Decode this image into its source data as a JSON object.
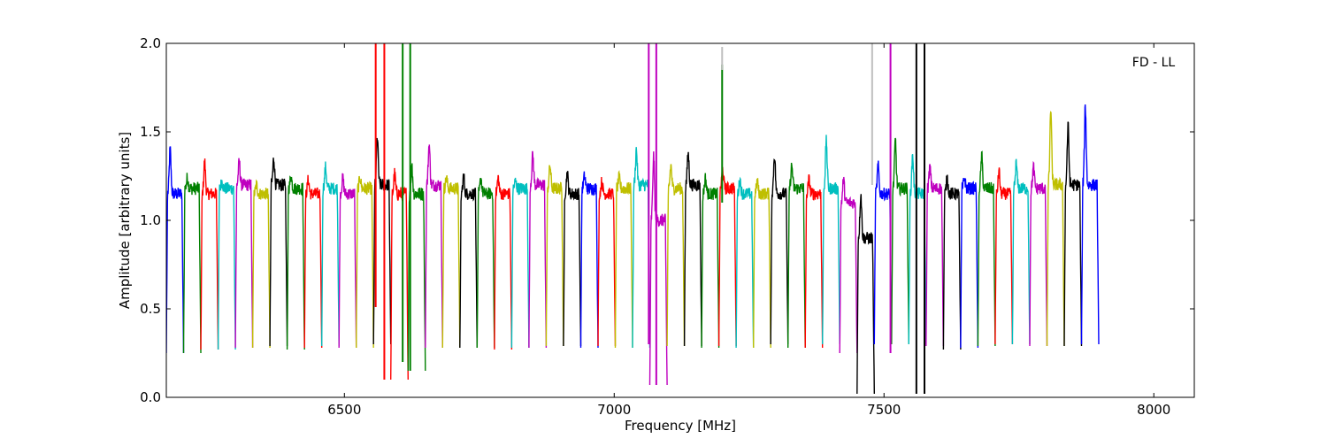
{
  "chart_data": {
    "type": "line",
    "title": "",
    "annotation": "FD - LL",
    "xlabel": "Frequency [MHz]",
    "ylabel": "Amplitude [arbitrary units]",
    "xlim": [
      6170,
      8075
    ],
    "ylim": [
      0.0,
      2.0
    ],
    "xticks": [
      6500,
      7000,
      7500,
      8000
    ],
    "xtick_labels": [
      "6500",
      "7000",
      "7500",
      "8000"
    ],
    "yticks": [
      0.0,
      0.5,
      1.0,
      1.5,
      2.0
    ],
    "ytick_labels": [
      "0.0",
      "0.5",
      "1.0",
      "1.5",
      "2.0"
    ],
    "grid": false,
    "legend": "none",
    "color_cycle": [
      "#0000ff",
      "#008000",
      "#ff0000",
      "#00bfbf",
      "#bf00bf",
      "#bfbf00",
      "#000000"
    ],
    "channel_width_mhz": 32,
    "channels": [
      {
        "x_start": 6170,
        "x_end": 6202,
        "color": "#0000ff",
        "peak": 1.4,
        "level": 1.15,
        "low": 0.25
      },
      {
        "x_start": 6202,
        "x_end": 6234,
        "color": "#008000",
        "peak": 1.24,
        "level": 1.18,
        "low": 0.25
      },
      {
        "x_start": 6234,
        "x_end": 6266,
        "color": "#ff0000",
        "peak": 1.33,
        "level": 1.15,
        "low": 0.27
      },
      {
        "x_start": 6266,
        "x_end": 6298,
        "color": "#00bfbf",
        "peak": 1.22,
        "level": 1.18,
        "low": 0.27
      },
      {
        "x_start": 6298,
        "x_end": 6330,
        "color": "#bf00bf",
        "peak": 1.33,
        "level": 1.2,
        "low": 0.28
      },
      {
        "x_start": 6330,
        "x_end": 6362,
        "color": "#bfbf00",
        "peak": 1.2,
        "level": 1.15,
        "low": 0.28
      },
      {
        "x_start": 6362,
        "x_end": 6394,
        "color": "#000000",
        "peak": 1.35,
        "level": 1.2,
        "low": 0.29
      },
      {
        "x_start": 6394,
        "x_end": 6426,
        "color": "#008000",
        "peak": 1.25,
        "level": 1.18,
        "low": 0.27
      },
      {
        "x_start": 6426,
        "x_end": 6458,
        "color": "#ff0000",
        "peak": 1.23,
        "level": 1.15,
        "low": 0.28
      },
      {
        "x_start": 6458,
        "x_end": 6490,
        "color": "#00bfbf",
        "peak": 1.3,
        "level": 1.18,
        "low": 0.29
      },
      {
        "x_start": 6490,
        "x_end": 6522,
        "color": "#bf00bf",
        "peak": 1.24,
        "level": 1.15,
        "low": 0.28
      },
      {
        "x_start": 6522,
        "x_end": 6554,
        "color": "#bfbf00",
        "peak": 1.24,
        "level": 1.18,
        "low": 0.28
      },
      {
        "x_start": 6554,
        "x_end": 6586,
        "color": "#000000",
        "peak": 1.47,
        "level": 1.2,
        "low": 0.3
      },
      {
        "x_start": 6586,
        "x_end": 6618,
        "color": "#ff0000",
        "peak": 1.26,
        "level": 1.15,
        "low": 0.1
      },
      {
        "x_start": 6618,
        "x_end": 6650,
        "color": "#008000",
        "peak": 1.3,
        "level": 1.15,
        "low": 0.15
      },
      {
        "x_start": 6650,
        "x_end": 6682,
        "color": "#bf00bf",
        "peak": 1.43,
        "level": 1.2,
        "low": 0.28
      },
      {
        "x_start": 6682,
        "x_end": 6714,
        "color": "#bfbf00",
        "peak": 1.24,
        "level": 1.18,
        "low": 0.28
      },
      {
        "x_start": 6714,
        "x_end": 6746,
        "color": "#000000",
        "peak": 1.25,
        "level": 1.15,
        "low": 0.28
      },
      {
        "x_start": 6746,
        "x_end": 6778,
        "color": "#008000",
        "peak": 1.24,
        "level": 1.15,
        "low": 0.28
      },
      {
        "x_start": 6778,
        "x_end": 6810,
        "color": "#ff0000",
        "peak": 1.24,
        "level": 1.15,
        "low": 0.27
      },
      {
        "x_start": 6810,
        "x_end": 6842,
        "color": "#00bfbf",
        "peak": 1.22,
        "level": 1.18,
        "low": 0.28
      },
      {
        "x_start": 6842,
        "x_end": 6874,
        "color": "#bf00bf",
        "peak": 1.37,
        "level": 1.2,
        "low": 0.28
      },
      {
        "x_start": 6874,
        "x_end": 6906,
        "color": "#bfbf00",
        "peak": 1.31,
        "level": 1.18,
        "low": 0.29
      },
      {
        "x_start": 6906,
        "x_end": 6938,
        "color": "#000000",
        "peak": 1.27,
        "level": 1.15,
        "low": 0.29
      },
      {
        "x_start": 6938,
        "x_end": 6970,
        "color": "#0000ff",
        "peak": 1.25,
        "level": 1.18,
        "low": 0.28
      },
      {
        "x_start": 6970,
        "x_end": 7002,
        "color": "#ff0000",
        "peak": 1.22,
        "level": 1.15,
        "low": 0.29
      },
      {
        "x_start": 7002,
        "x_end": 7034,
        "color": "#bfbf00",
        "peak": 1.24,
        "level": 1.18,
        "low": 0.28
      },
      {
        "x_start": 7034,
        "x_end": 7066,
        "color": "#00bfbf",
        "peak": 1.4,
        "level": 1.2,
        "low": 0.28
      },
      {
        "x_start": 7066,
        "x_end": 7098,
        "color": "#bf00bf",
        "peak": 1.36,
        "level": 1.0,
        "low": 0.07
      },
      {
        "x_start": 7098,
        "x_end": 7130,
        "color": "#bfbf00",
        "peak": 1.31,
        "level": 1.18,
        "low": 0.29
      },
      {
        "x_start": 7130,
        "x_end": 7162,
        "color": "#000000",
        "peak": 1.38,
        "level": 1.2,
        "low": 0.29
      },
      {
        "x_start": 7162,
        "x_end": 7194,
        "color": "#008000",
        "peak": 1.24,
        "level": 1.15,
        "low": 0.28
      },
      {
        "x_start": 7194,
        "x_end": 7226,
        "color": "#ff0000",
        "peak": 1.29,
        "level": 1.18,
        "low": 0.29
      },
      {
        "x_start": 7226,
        "x_end": 7258,
        "color": "#00bfbf",
        "peak": 1.23,
        "level": 1.15,
        "low": 0.28
      },
      {
        "x_start": 7258,
        "x_end": 7290,
        "color": "#bfbf00",
        "peak": 1.22,
        "level": 1.15,
        "low": 0.28
      },
      {
        "x_start": 7290,
        "x_end": 7322,
        "color": "#000000",
        "peak": 1.37,
        "level": 1.15,
        "low": 0.3
      },
      {
        "x_start": 7322,
        "x_end": 7354,
        "color": "#008000",
        "peak": 1.31,
        "level": 1.18,
        "low": 0.28
      },
      {
        "x_start": 7354,
        "x_end": 7386,
        "color": "#ff0000",
        "peak": 1.23,
        "level": 1.15,
        "low": 0.28
      },
      {
        "x_start": 7386,
        "x_end": 7418,
        "color": "#00bfbf",
        "peak": 1.45,
        "level": 1.18,
        "low": 0.3
      },
      {
        "x_start": 7418,
        "x_end": 7450,
        "color": "#bf00bf",
        "peak": 1.23,
        "level": 1.1,
        "low": 0.25
      },
      {
        "x_start": 7450,
        "x_end": 7482,
        "color": "#000000",
        "peak": 1.15,
        "level": 0.9,
        "low": 0.02
      },
      {
        "x_start": 7482,
        "x_end": 7514,
        "color": "#0000ff",
        "peak": 1.31,
        "level": 1.15,
        "low": 0.3
      },
      {
        "x_start": 7514,
        "x_end": 7546,
        "color": "#008000",
        "peak": 1.45,
        "level": 1.18,
        "low": 0.3
      },
      {
        "x_start": 7546,
        "x_end": 7578,
        "color": "#00bfbf",
        "peak": 1.37,
        "level": 1.15,
        "low": 0.3
      },
      {
        "x_start": 7578,
        "x_end": 7610,
        "color": "#bf00bf",
        "peak": 1.3,
        "level": 1.18,
        "low": 0.29
      },
      {
        "x_start": 7610,
        "x_end": 7642,
        "color": "#000000",
        "peak": 1.24,
        "level": 1.15,
        "low": 0.27
      },
      {
        "x_start": 7642,
        "x_end": 7674,
        "color": "#0000ff",
        "peak": 1.24,
        "level": 1.18,
        "low": 0.28
      },
      {
        "x_start": 7674,
        "x_end": 7706,
        "color": "#008000",
        "peak": 1.36,
        "level": 1.18,
        "low": 0.29
      },
      {
        "x_start": 7706,
        "x_end": 7738,
        "color": "#ff0000",
        "peak": 1.28,
        "level": 1.15,
        "low": 0.3
      },
      {
        "x_start": 7738,
        "x_end": 7770,
        "color": "#00bfbf",
        "peak": 1.32,
        "level": 1.18,
        "low": 0.3
      },
      {
        "x_start": 7770,
        "x_end": 7802,
        "color": "#bf00bf",
        "peak": 1.3,
        "level": 1.18,
        "low": 0.29
      },
      {
        "x_start": 7802,
        "x_end": 7834,
        "color": "#bfbf00",
        "peak": 1.63,
        "level": 1.2,
        "low": 0.29
      },
      {
        "x_start": 7834,
        "x_end": 7866,
        "color": "#000000",
        "peak": 1.53,
        "level": 1.2,
        "low": 0.29
      },
      {
        "x_start": 7866,
        "x_end": 7898,
        "color": "#0000ff",
        "peak": 1.64,
        "level": 1.2,
        "low": 0.3
      }
    ],
    "spikes": [
      {
        "x": 6558,
        "color": "#ff0000",
        "y_low": 0.51,
        "y_high": 2.0
      },
      {
        "x": 6574,
        "color": "#ff0000",
        "y_low": 0.1,
        "y_high": 2.0
      },
      {
        "x": 6608,
        "color": "#008000",
        "y_low": 0.2,
        "y_high": 2.0
      },
      {
        "x": 6622,
        "color": "#008000",
        "y_low": 0.15,
        "y_high": 2.0
      },
      {
        "x": 7064,
        "color": "#bf00bf",
        "y_low": 0.3,
        "y_high": 2.0
      },
      {
        "x": 7078,
        "color": "#bf00bf",
        "y_low": 0.07,
        "y_high": 2.0
      },
      {
        "x": 7200,
        "color": "#008000",
        "y_low": 1.1,
        "y_high": 1.88
      },
      {
        "x": 7200,
        "color": "#bfbfbf",
        "y_low": 1.85,
        "y_high": 1.98
      },
      {
        "x": 7478,
        "color": "#bfbfbf",
        "y_low": 1.2,
        "y_high": 2.0
      },
      {
        "x": 7512,
        "color": "#bf00bf",
        "y_low": 0.25,
        "y_high": 2.0
      },
      {
        "x": 7560,
        "color": "#000000",
        "y_low": 0.02,
        "y_high": 2.0
      },
      {
        "x": 7575,
        "color": "#000000",
        "y_low": 0.02,
        "y_high": 2.0
      }
    ]
  }
}
